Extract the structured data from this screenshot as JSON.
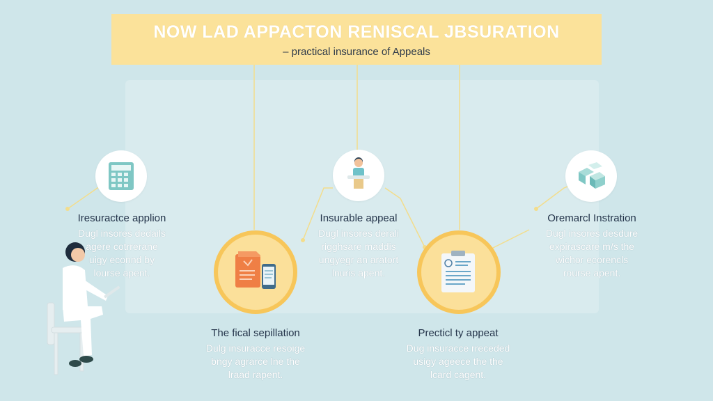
{
  "header": {
    "title": "NOW LAD APPACTON RENISCAL JBSURATION",
    "subtitle": "– practical insurance of Appeals"
  },
  "steps": [
    {
      "heading": "Iresuractce applion",
      "body": "Dugl insores dedails\nagere cotrrerane\nuigy econnd by\nlourse apent.",
      "icon": "calculator-icon"
    },
    {
      "heading": "Insurable appeal",
      "body": "Dugl insores derali\nrigghsare maddis\nungyegr an aratort\nlnuris apent.",
      "icon": "person-icon"
    },
    {
      "heading": "Oremarcl Instration",
      "body": "Dugl insores desdure\nexpirascare m/s the\nwichor ecorencls\nrourse apent.",
      "icon": "cubes-icon"
    },
    {
      "heading": "The fical sepillation",
      "body": "Dulg insuracce resoige\nbngy agrarce lne the\nlraad rapent.",
      "icon": "document-phone-icon"
    },
    {
      "heading": "Precticl ty appeat",
      "body": "Dug insuracce rreceded\nusigy ageece the the\nlcard cagent.",
      "icon": "clipboard-icon"
    }
  ],
  "colors": {
    "background": "#cfe6ea",
    "banner": "#fbe29a",
    "gold_ring": "#f7c65a",
    "connector": "#f3dd8c"
  }
}
